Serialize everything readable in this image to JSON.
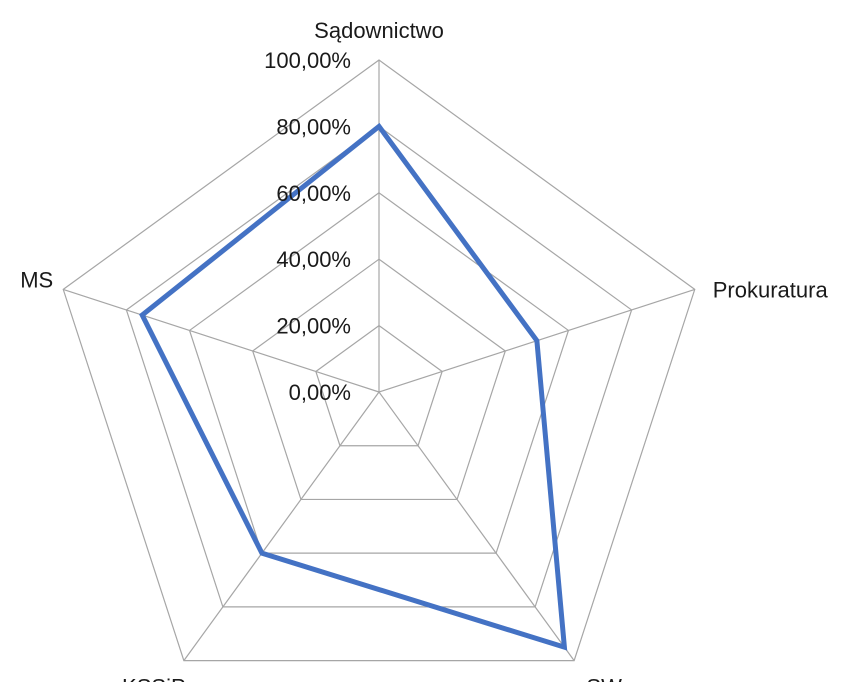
{
  "chart_data": {
    "type": "radar",
    "categories": [
      "Sądownictwo",
      "Prokuratura",
      "SW",
      "KSSiP",
      "MS"
    ],
    "series": [
      {
        "values": [
          80,
          50,
          95,
          60,
          75
        ],
        "color": "#4472c4"
      }
    ],
    "rlim": [
      0,
      100
    ],
    "ticks": [
      0,
      20,
      40,
      60,
      80,
      100
    ],
    "tick_labels": [
      "0,00%",
      "20,00%",
      "40,00%",
      "60,00%",
      "80,00%",
      "100,00%"
    ],
    "grid": true,
    "legend": "none"
  }
}
